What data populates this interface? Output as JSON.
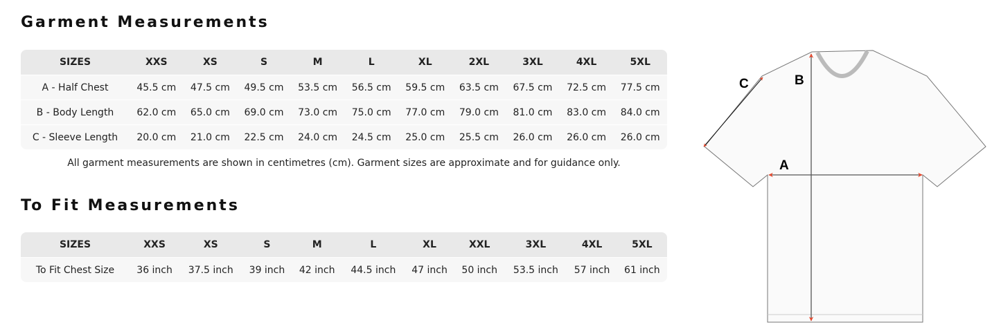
{
  "garment": {
    "title": "Garment Measurements",
    "headers": [
      "SIZES",
      "XXS",
      "XS",
      "S",
      "M",
      "L",
      "XL",
      "2XL",
      "3XL",
      "4XL",
      "5XL"
    ],
    "rows": [
      [
        "A - Half Chest",
        "45.5 cm",
        "47.5 cm",
        "49.5 cm",
        "53.5 cm",
        "56.5 cm",
        "59.5 cm",
        "63.5 cm",
        "67.5 cm",
        "72.5 cm",
        "77.5 cm"
      ],
      [
        "B - Body Length",
        "62.0 cm",
        "65.0 cm",
        "69.0 cm",
        "73.0 cm",
        "75.0 cm",
        "77.0 cm",
        "79.0 cm",
        "81.0 cm",
        "83.0 cm",
        "84.0 cm"
      ],
      [
        "C - Sleeve Length",
        "20.0 cm",
        "21.0 cm",
        "22.5 cm",
        "24.0 cm",
        "24.5 cm",
        "25.0 cm",
        "25.5 cm",
        "26.0 cm",
        "26.0 cm",
        "26.0 cm"
      ]
    ],
    "note": "All garment measurements are shown in centimetres (cm). Garment sizes are approximate and for guidance only."
  },
  "fit": {
    "title": "To Fit Measurements",
    "headers": [
      "SIZES",
      "XXS",
      "XS",
      "S",
      "M",
      "L",
      "XL",
      "XXL",
      "3XL",
      "4XL",
      "5XL"
    ],
    "rows": [
      [
        "To Fit Chest Size",
        "36 inch",
        "37.5 inch",
        "39 inch",
        "42 inch",
        "44.5 inch",
        "47 inch",
        "50 inch",
        "53.5 inch",
        "57 inch",
        "61 inch"
      ]
    ]
  },
  "diagram": {
    "labels": {
      "a": "A",
      "b": "B",
      "c": "C"
    },
    "arrow_color": "#e8472b"
  }
}
